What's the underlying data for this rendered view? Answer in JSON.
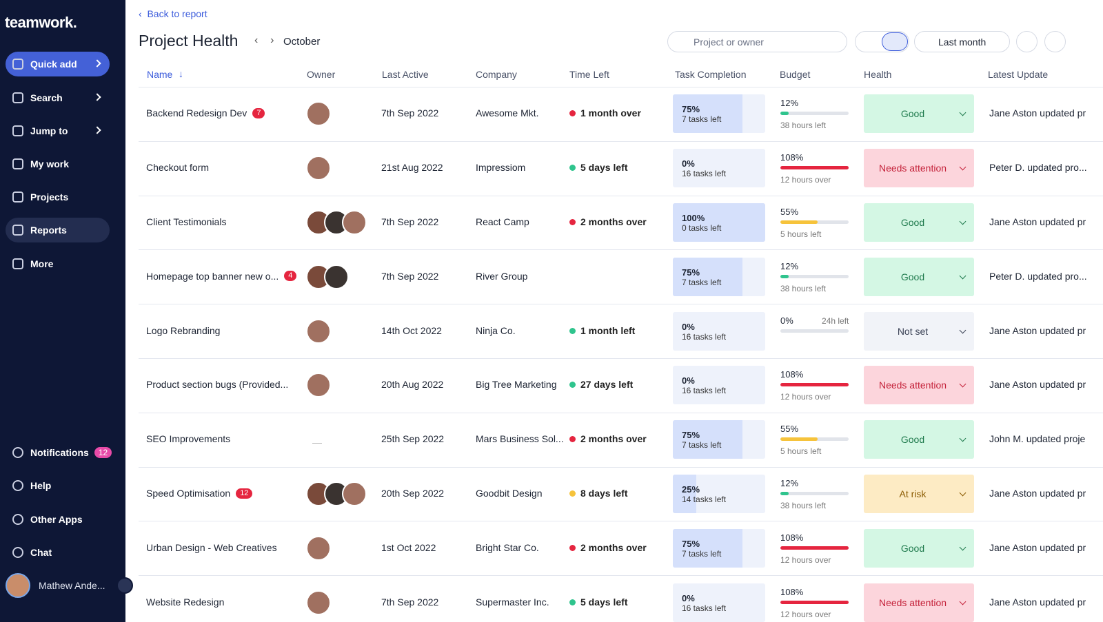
{
  "sidebar": {
    "logo": "teamwork.",
    "nav": [
      "Quick add",
      "Search",
      "Jump to",
      "My work",
      "Projects",
      "Reports",
      "More"
    ],
    "bottom": [
      "Notifications",
      "Help",
      "Other Apps",
      "Chat"
    ],
    "notifications_badge": 12,
    "user": "Mathew Ande..."
  },
  "header": {
    "back": "Back to report",
    "title": "Project Health",
    "month": "October",
    "search_placeholder": "Project or owner",
    "range": "Last month"
  },
  "table": {
    "columns": [
      "Name",
      "Owner",
      "Last Active",
      "Company",
      "Time Left",
      "Task Completion",
      "Budget",
      "Health",
      "Latest Update"
    ],
    "rows": [
      {
        "name": "Backend Redesign Dev",
        "badge": 7,
        "owners": 1,
        "last_active": "7th Sep 2022",
        "company": "Awesome Mkt.",
        "time_left": "1 month over",
        "time_color": "#e5253f",
        "task": {
          "value": 75,
          "label": "75%"
        },
        "tasks_left": "7 tasks left",
        "budget": {
          "value": 12,
          "label": "12%"
        },
        "budget_color": "#2fc48d",
        "budget_note": "38 hours left",
        "health": {
          "label": "Good",
          "bg": "#d4f7e4",
          "fg": "#1f7a4d"
        },
        "update": "Jane Aston updated pr"
      },
      {
        "name": "Checkout form",
        "owners": 1,
        "last_active": "21st Aug 2022",
        "company": "Impressiom",
        "time_left": "5 days left",
        "time_color": "#2fc48d",
        "task": {
          "value": 0,
          "label": "0%"
        },
        "tasks_left": "16 tasks left",
        "budget": {
          "value": 108,
          "label": "108%"
        },
        "budget_color": "#e5253f",
        "budget_note": "12 hours over",
        "health": {
          "label": "Needs attention",
          "bg": "#fcd5dc",
          "fg": "#c4223a"
        },
        "update": "Peter D. updated pro..."
      },
      {
        "name": "Client Testimonials",
        "owners": 3,
        "last_active": "7th Sep 2022",
        "company": "React Camp",
        "time_left": "2 months over",
        "time_color": "#e5253f",
        "task": {
          "value": 100,
          "label": "100%"
        },
        "tasks_left": "0 tasks left",
        "budget": {
          "value": 55,
          "label": "55%"
        },
        "budget_color": "#f6c33b",
        "budget_note": "5 hours left",
        "health": {
          "label": "Good",
          "bg": "#d4f7e4",
          "fg": "#1f7a4d"
        },
        "update": "Jane Aston updated pr"
      },
      {
        "name": "Homepage top banner new o...",
        "badge": 4,
        "owners": 2,
        "last_active": "7th Sep 2022",
        "company": "River Group",
        "task": {
          "value": 75,
          "label": "75%"
        },
        "tasks_left": "7 tasks left",
        "budget": {
          "value": 12,
          "label": "12%"
        },
        "budget_color": "#2fc48d",
        "budget_note": "38 hours left",
        "health": {
          "label": "Good",
          "bg": "#d4f7e4",
          "fg": "#1f7a4d"
        },
        "update": "Peter D. updated pro..."
      },
      {
        "name": "Logo Rebranding",
        "owners": 1,
        "last_active": "14th Oct 2022",
        "company": "Ninja Co.",
        "time_left": "1 month left",
        "time_color": "#2fc48d",
        "task": {
          "value": 0,
          "label": "0%"
        },
        "tasks_left": "16 tasks left",
        "budget": {
          "value": 0,
          "label": "0%"
        },
        "budget_color": "#2fc48d",
        "budget_extra": "24h left",
        "health": {
          "label": "Not set",
          "bg": "#f1f3f8",
          "fg": "#3b4256"
        },
        "update": "Jane Aston updated pr"
      },
      {
        "name": "Product section bugs (Provided...",
        "owners": 1,
        "last_active": "20th Aug 2022",
        "company": "Big Tree Marketing",
        "time_left": "27 days left",
        "time_color": "#2fc48d",
        "task": {
          "value": 0,
          "label": "0%"
        },
        "tasks_left": "16 tasks left",
        "budget": {
          "value": 108,
          "label": "108%"
        },
        "budget_color": "#e5253f",
        "budget_note": "12 hours over",
        "health": {
          "label": "Needs attention",
          "bg": "#fcd5dc",
          "fg": "#c4223a"
        },
        "update": "Jane Aston updated pr"
      },
      {
        "name": "SEO Improvements",
        "owners": 0,
        "last_active": "25th Sep 2022",
        "company": "Mars Business Sol...",
        "time_left": "2 months over",
        "time_color": "#e5253f",
        "task": {
          "value": 75,
          "label": "75%"
        },
        "tasks_left": "7 tasks left",
        "budget": {
          "value": 55,
          "label": "55%"
        },
        "budget_color": "#f6c33b",
        "budget_note": "5 hours left",
        "health": {
          "label": "Good",
          "bg": "#d4f7e4",
          "fg": "#1f7a4d"
        },
        "update": "John M. updated proje"
      },
      {
        "name": "Speed Optimisation",
        "badge": 12,
        "owners": 3,
        "last_active": "20th Sep 2022",
        "company": "Goodbit Design",
        "time_left": "8 days left",
        "time_color": "#f6c33b",
        "task": {
          "value": 25,
          "label": "25%"
        },
        "tasks_left": "14 tasks left",
        "budget": {
          "value": 12,
          "label": "12%"
        },
        "budget_color": "#2fc48d",
        "budget_note": "38 hours left",
        "health": {
          "label": "At risk",
          "bg": "#fdebc4",
          "fg": "#8a5a00"
        },
        "update": "Jane Aston updated pr"
      },
      {
        "name": "Urban Design - Web Creatives",
        "owners": 1,
        "last_active": "1st Oct 2022",
        "company": "Bright Star Co.",
        "time_left": "2 months over",
        "time_color": "#e5253f",
        "task": {
          "value": 75,
          "label": "75%"
        },
        "tasks_left": "7 tasks left",
        "budget": {
          "value": 108,
          "label": "108%"
        },
        "budget_color": "#e5253f",
        "budget_note": "12 hours over",
        "health": {
          "label": "Good",
          "bg": "#d4f7e4",
          "fg": "#1f7a4d"
        },
        "update": "Jane Aston updated pr"
      },
      {
        "name": "Website Redesign",
        "owners": 1,
        "last_active": "7th Sep 2022",
        "company": "Supermaster Inc.",
        "time_left": "5 days left",
        "time_color": "#2fc48d",
        "task": {
          "value": 0,
          "label": "0%"
        },
        "tasks_left": "16 tasks left",
        "budget": {
          "value": 108,
          "label": "108%"
        },
        "budget_color": "#e5253f",
        "budget_note": "12 hours over",
        "health": {
          "label": "Needs attention",
          "bg": "#fcd5dc",
          "fg": "#c4223a"
        },
        "update": "Jane Aston updated pr"
      }
    ]
  }
}
